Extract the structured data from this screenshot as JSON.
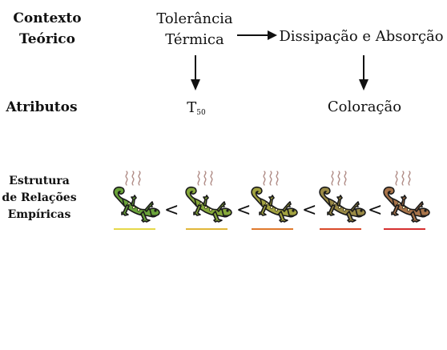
{
  "labels": {
    "contexto_line1": "Contexto",
    "contexto_line2": "Teórico",
    "atributos": "Atributos",
    "estrutura_line1": "Estrutura",
    "estrutura_line2": "de Relações",
    "estrutura_line3": "Empíricas"
  },
  "concepts": {
    "tolerancia_line1": "Tolerância",
    "tolerancia_line2": "Térmica",
    "dissipacao": "Dissipação e Absorção"
  },
  "attributes": {
    "t50_main": "T",
    "t50_sub": "50",
    "coloracao": "Coloração"
  },
  "relation_symbol": "<",
  "lizards": [
    {
      "body": "#6aa33a",
      "stripe": "#e6d84a"
    },
    {
      "body": "#86a93a",
      "stripe": "#e1b73a"
    },
    {
      "body": "#a3a340",
      "stripe": "#e07a2e"
    },
    {
      "body": "#9a8a45",
      "stripe": "#d94a2a"
    },
    {
      "body": "#a8744a",
      "stripe": "#d63030"
    }
  ],
  "colors": {
    "steam": "#b08c86",
    "outline": "#1a1a1a"
  }
}
